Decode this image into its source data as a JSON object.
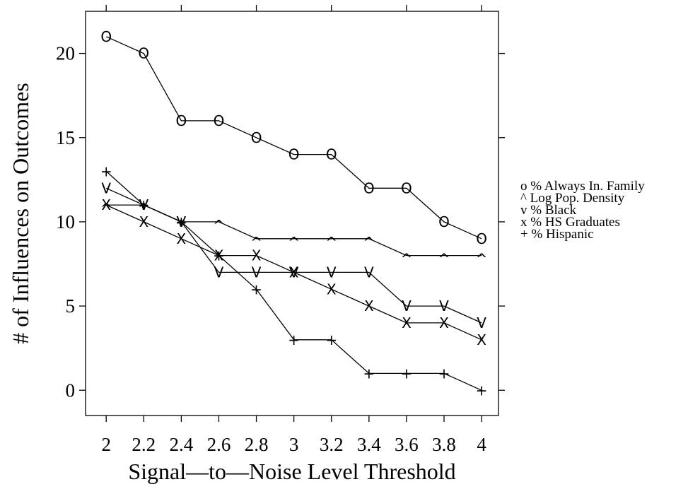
{
  "chart_data": {
    "type": "line",
    "xlabel": "Signal—to—Noise Level Threshold",
    "ylabel": "# of Influences on Outcomes",
    "x": [
      2,
      2.2,
      2.4,
      2.6,
      2.8,
      3,
      3.2,
      3.4,
      3.6,
      3.8,
      4
    ],
    "x_tick_labels": [
      "2",
      "2.2",
      "2.4",
      "2.6",
      "2.8",
      "3",
      "3.2",
      "3.4",
      "3.6",
      "3.8",
      "4"
    ],
    "y_ticks": [
      0,
      5,
      10,
      15,
      20
    ],
    "y_tick_labels": [
      "0",
      "5",
      "10",
      "15",
      "20"
    ],
    "xlim": [
      1.89,
      4.09
    ],
    "ylim": [
      -1.5,
      22.5
    ],
    "grid": false,
    "legend_position": "right",
    "series": [
      {
        "name": "% Always In. Family",
        "legend_label": "o % Always In. Family",
        "marker": "o",
        "values": [
          21,
          20,
          16,
          16,
          15,
          14,
          14,
          12,
          12,
          10,
          9
        ]
      },
      {
        "name": "Log Pop. Density",
        "legend_label": "^ Log Pop. Density",
        "marker": "^",
        "values": [
          11,
          11,
          10,
          10,
          9,
          9,
          9,
          9,
          8,
          8,
          8
        ]
      },
      {
        "name": "% Black",
        "legend_label": "v % Black",
        "marker": "v",
        "values": [
          12,
          11,
          10,
          7,
          7,
          7,
          7,
          7,
          5,
          5,
          4
        ]
      },
      {
        "name": "% HS Graduates",
        "legend_label": "x % HS Graduates",
        "marker": "x",
        "values": [
          11,
          10,
          9,
          8,
          8,
          7,
          6,
          5,
          4,
          4,
          3
        ]
      },
      {
        "name": "% Hispanic",
        "legend_label": "+ % Hispanic",
        "marker": "+",
        "values": [
          13,
          11,
          10,
          8,
          6,
          3,
          3,
          1,
          1,
          1,
          0
        ]
      }
    ]
  }
}
